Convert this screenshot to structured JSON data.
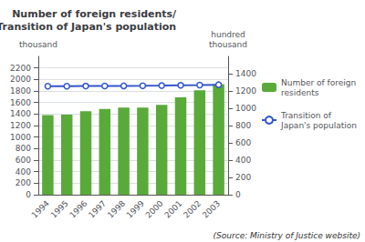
{
  "chart_data": {
    "type": "bar",
    "title": "Number of foreign residents/\nTransition of Japan's population",
    "ylabel": "thousand",
    "y2label": "hundred\nthousand",
    "annotations": [
      "(Source: Ministry of Justice website)"
    ],
    "categories": [
      "1994",
      "1995",
      "1996",
      "1997",
      "1998",
      "1999",
      "2000",
      "2001",
      "2002",
      "2003"
    ],
    "series": [
      {
        "name": "Number of foreign\nresidents",
        "type": "bar",
        "color": "#5aaa3a",
        "values": [
          1380,
          1390,
          1450,
          1490,
          1510,
          1510,
          1560,
          1690,
          1810,
          1920
        ]
      },
      {
        "name": "Transition of\nJapan's population",
        "type": "line",
        "color": "#3355cc",
        "marker": "circle",
        "axis": "y2",
        "values": [
          1255,
          1256,
          1257,
          1258,
          1259,
          1260,
          1262,
          1265,
          1268,
          1272
        ]
      }
    ],
    "ylim": [
      0,
      2400
    ],
    "yticks": [
      0,
      200,
      400,
      600,
      800,
      1000,
      1200,
      1400,
      1600,
      1800,
      2000,
      2200
    ],
    "y2lim": [
      0,
      1600
    ],
    "y2ticks": [
      0,
      200,
      400,
      600,
      800,
      1000,
      1200,
      1400
    ],
    "grid": true,
    "legend": "right"
  }
}
